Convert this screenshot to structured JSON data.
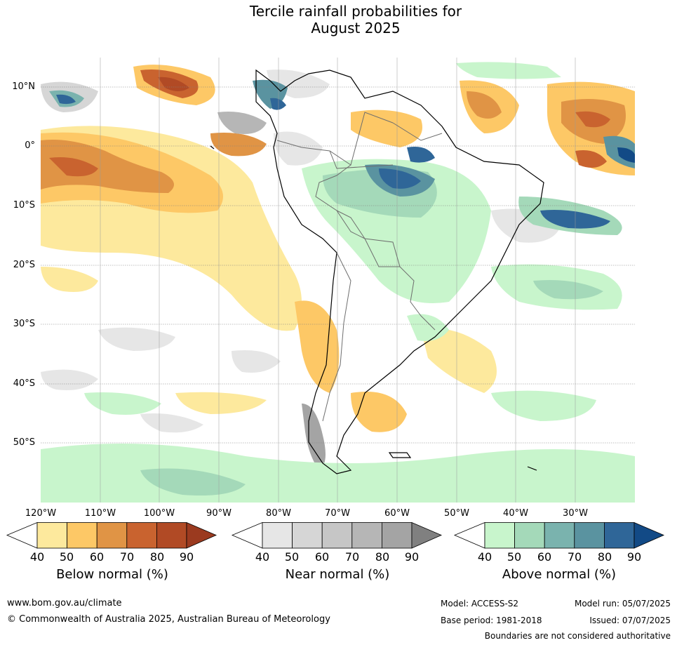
{
  "title_line1": "Tercile rainfall probabilities for",
  "title_line2": "August 2025",
  "lat_labels": [
    "10°N",
    "0°",
    "10°S",
    "20°S",
    "30°S",
    "40°S",
    "50°S"
  ],
  "lon_labels": [
    "120°W",
    "110°W",
    "100°W",
    "90°W",
    "80°W",
    "70°W",
    "60°W",
    "50°W",
    "40°W",
    "30°W"
  ],
  "colorbars": [
    {
      "label": "Below normal (%)",
      "ticks": [
        "40",
        "50",
        "60",
        "70",
        "80",
        "90"
      ],
      "colors": [
        "#ffffff",
        "#fde99d",
        "#fdc866",
        "#e09445",
        "#c9632f",
        "#b14a25",
        "#9b3a1f"
      ]
    },
    {
      "label": "Near normal (%)",
      "ticks": [
        "40",
        "50",
        "60",
        "70",
        "80",
        "90"
      ],
      "colors": [
        "#ffffff",
        "#e6e6e6",
        "#d6d6d6",
        "#c6c6c6",
        "#b6b6b6",
        "#a4a4a4",
        "#808080"
      ]
    },
    {
      "label": "Above normal (%)",
      "ticks": [
        "40",
        "50",
        "60",
        "70",
        "80",
        "90"
      ],
      "colors": [
        "#ffffff",
        "#c8f5cc",
        "#a4d9b9",
        "#7ab3ae",
        "#5a93a0",
        "#2f6698",
        "#124a86"
      ]
    }
  ],
  "footer": {
    "website": "www.bom.gov.au/climate",
    "copyright": "© Commonwealth of Australia 2025, Australian Bureau of Meteorology",
    "model": "Model: ACCESS-S2",
    "base_period": "Base period: 1981-2018",
    "model_run": "Model run: 05/07/2025",
    "issued": "Issued: 07/07/2025",
    "disclaimer": "Boundaries are not considered authoritative"
  }
}
